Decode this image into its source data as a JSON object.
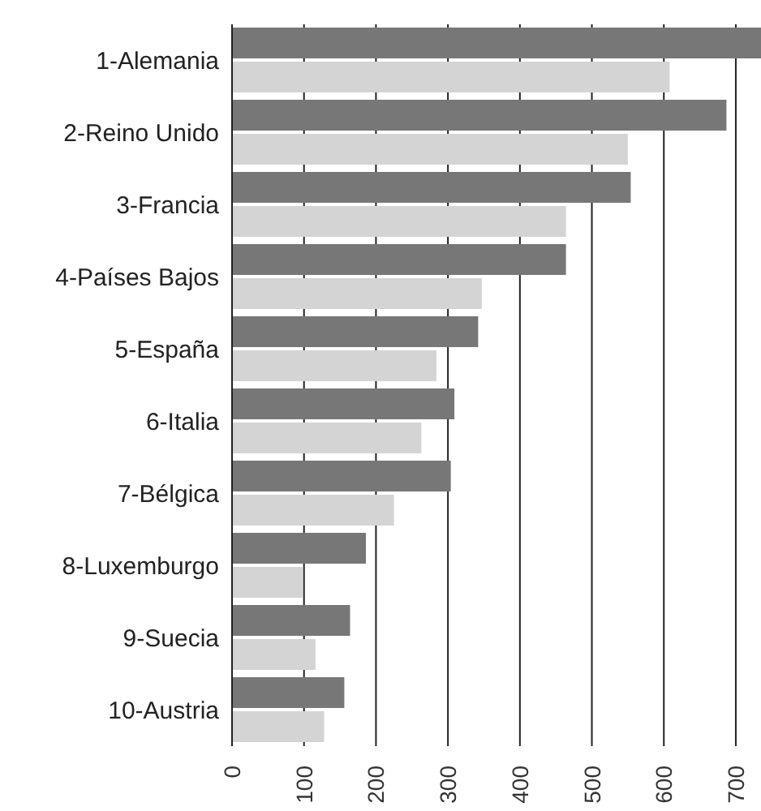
{
  "chart_data": {
    "type": "bar",
    "orientation": "horizontal",
    "categories": [
      "1-Alemania",
      "2-Reino Unido",
      "3-Francia",
      "4-Países Bajos",
      "5-España",
      "6-Italia",
      "7-Bélgica",
      "8-Luxemburgo",
      "9-Suecia",
      "10-Austria"
    ],
    "series": [
      {
        "color": "#777777",
        "values": [
          735,
          687,
          554,
          464,
          342,
          309,
          304,
          186,
          164,
          156
        ]
      },
      {
        "color": "#d4d4d4",
        "values": [
          608,
          550,
          464,
          347,
          284,
          263,
          225,
          98,
          116,
          128
        ]
      }
    ],
    "xlim": [
      0,
      735
    ],
    "xticks": [
      0,
      100,
      200,
      300,
      400,
      500,
      600,
      700
    ],
    "grid": "x",
    "legend": false
  }
}
